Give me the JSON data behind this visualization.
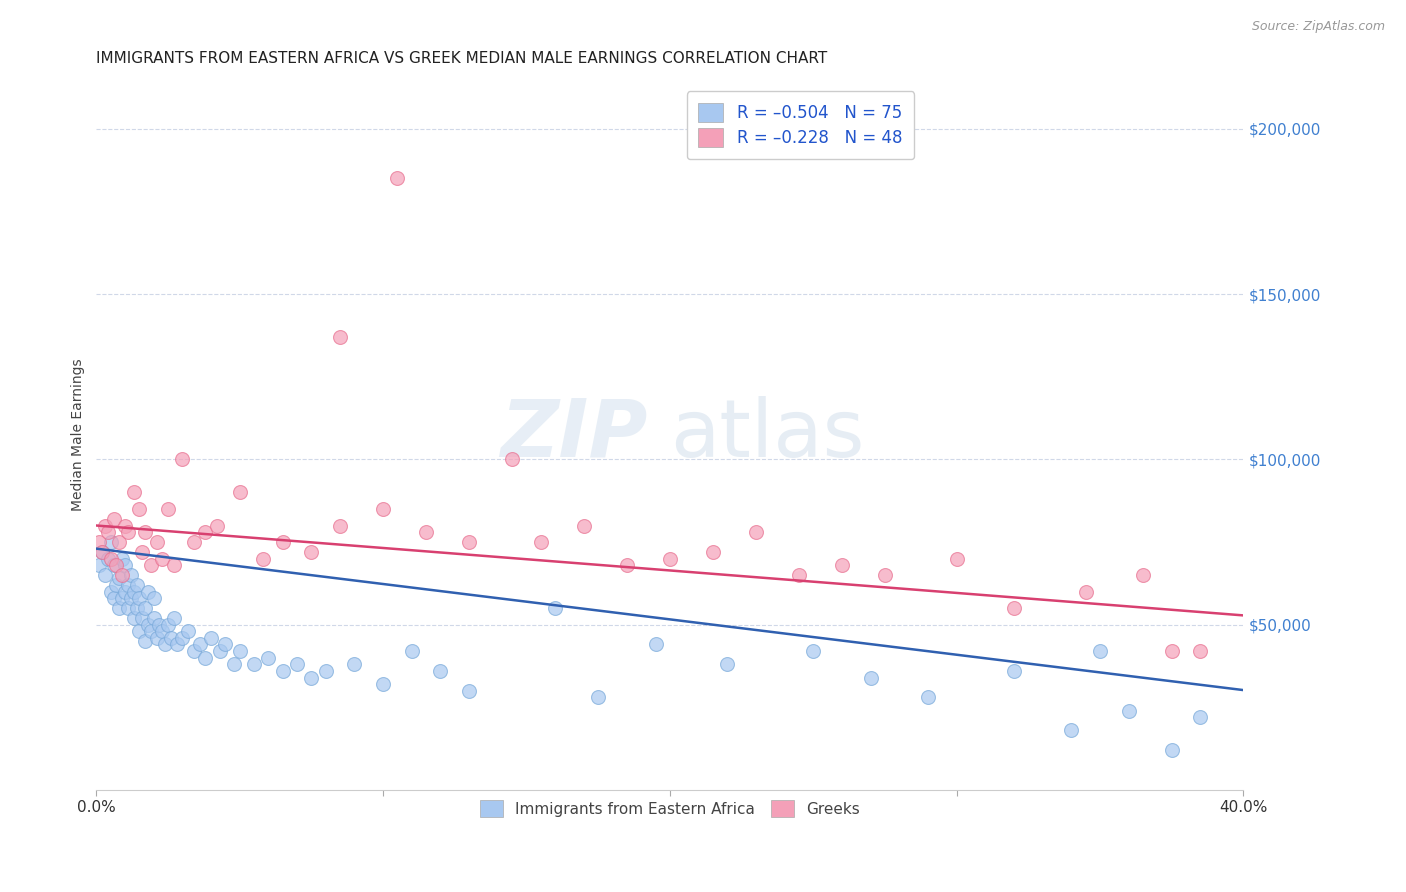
{
  "title": "IMMIGRANTS FROM EASTERN AFRICA VS GREEK MEDIAN MALE EARNINGS CORRELATION CHART",
  "source": "Source: ZipAtlas.com",
  "ylabel": "Median Male Earnings",
  "right_ytick_labels": [
    "$50,000",
    "$100,000",
    "$150,000",
    "$200,000"
  ],
  "right_ytick_values": [
    50000,
    100000,
    150000,
    200000
  ],
  "xlim": [
    0.0,
    0.4
  ],
  "ylim": [
    0,
    215000
  ],
  "legend_entries": [
    {
      "label": "R = –0.504   N = 75",
      "color": "#a8c8f0"
    },
    {
      "label": "R = –0.228   N = 48",
      "color": "#f4a0b8"
    }
  ],
  "legend_bottom_labels": [
    "Immigrants from Eastern Africa",
    "Greeks"
  ],
  "legend_bottom_colors": [
    "#a8c8f0",
    "#f4a0b8"
  ],
  "watermark_zip": "ZIP",
  "watermark_atlas": "atlas",
  "blue_scatter_x": [
    0.001,
    0.002,
    0.003,
    0.004,
    0.005,
    0.005,
    0.006,
    0.006,
    0.007,
    0.008,
    0.008,
    0.009,
    0.009,
    0.01,
    0.01,
    0.011,
    0.011,
    0.012,
    0.012,
    0.013,
    0.013,
    0.014,
    0.014,
    0.015,
    0.015,
    0.016,
    0.017,
    0.017,
    0.018,
    0.018,
    0.019,
    0.02,
    0.02,
    0.021,
    0.022,
    0.023,
    0.024,
    0.025,
    0.026,
    0.027,
    0.028,
    0.03,
    0.032,
    0.034,
    0.036,
    0.038,
    0.04,
    0.043,
    0.045,
    0.048,
    0.05,
    0.055,
    0.06,
    0.065,
    0.07,
    0.075,
    0.08,
    0.09,
    0.1,
    0.11,
    0.12,
    0.13,
    0.16,
    0.175,
    0.195,
    0.22,
    0.25,
    0.27,
    0.29,
    0.32,
    0.34,
    0.35,
    0.36,
    0.375,
    0.385
  ],
  "blue_scatter_y": [
    68000,
    72000,
    65000,
    70000,
    60000,
    75000,
    58000,
    68000,
    62000,
    55000,
    64000,
    58000,
    70000,
    60000,
    68000,
    55000,
    62000,
    58000,
    65000,
    52000,
    60000,
    55000,
    62000,
    48000,
    58000,
    52000,
    45000,
    55000,
    50000,
    60000,
    48000,
    52000,
    58000,
    46000,
    50000,
    48000,
    44000,
    50000,
    46000,
    52000,
    44000,
    46000,
    48000,
    42000,
    44000,
    40000,
    46000,
    42000,
    44000,
    38000,
    42000,
    38000,
    40000,
    36000,
    38000,
    34000,
    36000,
    38000,
    32000,
    42000,
    36000,
    30000,
    55000,
    28000,
    44000,
    38000,
    42000,
    34000,
    28000,
    36000,
    18000,
    42000,
    24000,
    12000,
    22000
  ],
  "pink_scatter_x": [
    0.001,
    0.002,
    0.003,
    0.004,
    0.005,
    0.006,
    0.007,
    0.008,
    0.009,
    0.01,
    0.011,
    0.013,
    0.015,
    0.016,
    0.017,
    0.019,
    0.021,
    0.023,
    0.025,
    0.027,
    0.03,
    0.034,
    0.038,
    0.042,
    0.05,
    0.058,
    0.065,
    0.075,
    0.085,
    0.1,
    0.115,
    0.13,
    0.145,
    0.155,
    0.17,
    0.185,
    0.2,
    0.215,
    0.23,
    0.245,
    0.26,
    0.275,
    0.3,
    0.32,
    0.345,
    0.365,
    0.375,
    0.385
  ],
  "pink_scatter_y": [
    75000,
    72000,
    80000,
    78000,
    70000,
    82000,
    68000,
    75000,
    65000,
    80000,
    78000,
    90000,
    85000,
    72000,
    78000,
    68000,
    75000,
    70000,
    85000,
    68000,
    100000,
    75000,
    78000,
    80000,
    90000,
    70000,
    75000,
    72000,
    80000,
    85000,
    78000,
    75000,
    100000,
    75000,
    80000,
    68000,
    70000,
    72000,
    78000,
    65000,
    68000,
    65000,
    70000,
    55000,
    60000,
    65000,
    42000,
    42000
  ],
  "pink_outlier_x": [
    0.105
  ],
  "pink_outlier_y": [
    185000
  ],
  "pink_outlier2_x": [
    0.085
  ],
  "pink_outlier2_y": [
    137000
  ],
  "blue_line_intercept": 73000,
  "blue_line_slope": -107000,
  "pink_line_intercept": 80000,
  "pink_line_slope": -68000,
  "scatter_color_blue": "#a8c8f0",
  "scatter_color_pink": "#f4a0b8",
  "scatter_edge_blue": "#7aaada",
  "scatter_edge_pink": "#e87090",
  "line_color_blue": "#3060b0",
  "line_color_pink": "#d84070",
  "scatter_size": 100,
  "scatter_alpha": 0.7,
  "title_fontsize": 11,
  "axis_label_fontsize": 10,
  "tick_fontsize": 11,
  "background_color": "#ffffff",
  "grid_color": "#d0d8e8",
  "right_axis_color": "#4080d0"
}
